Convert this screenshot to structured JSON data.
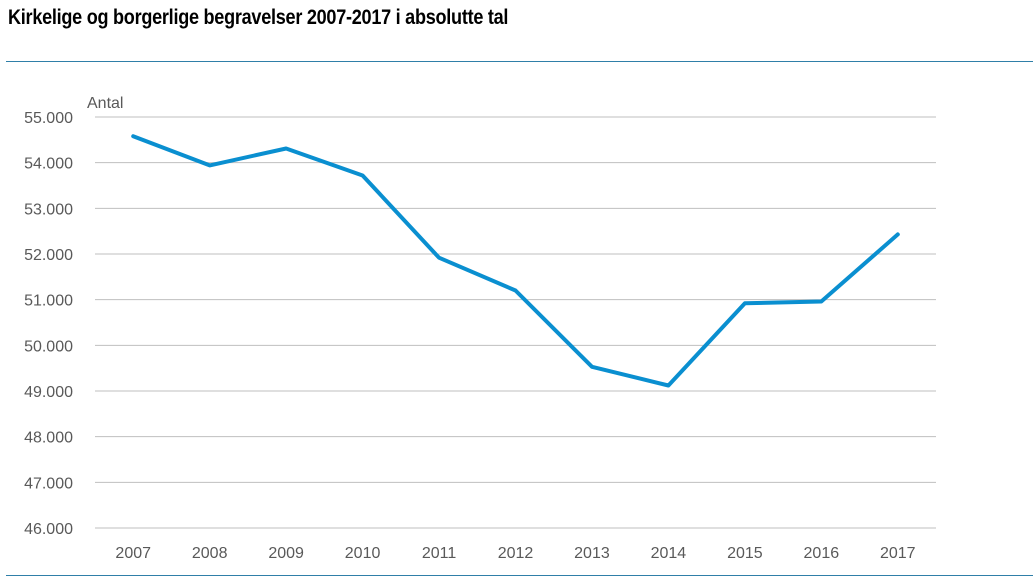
{
  "title": "Kirkelige og borgerlige begravelser 2007-2017 i absolutte tal",
  "colors": {
    "line": "#0a8fd0",
    "grid": "#bfbfbf",
    "rule": "#2f7fa8",
    "axis_text": "#595959"
  },
  "chart_data": {
    "type": "line",
    "title": "Kirkelige og borgerlige begravelser 2007-2017 i absolutte tal",
    "ylabel": "Antal",
    "xlabel": "",
    "categories": [
      "2007",
      "2008",
      "2009",
      "2010",
      "2011",
      "2012",
      "2013",
      "2014",
      "2015",
      "2016",
      "2017"
    ],
    "series": [
      {
        "values": [
          54580,
          53940,
          54310,
          53720,
          51920,
          51200,
          49530,
          49120,
          50920,
          50960,
          52430
        ]
      }
    ],
    "ylim": [
      46000,
      55000
    ],
    "yticks": [
      46000,
      47000,
      48000,
      49000,
      50000,
      51000,
      52000,
      53000,
      54000,
      55000
    ],
    "ytick_labels": [
      "46.000",
      "47.000",
      "48.000",
      "49.000",
      "50.000",
      "51.000",
      "52.000",
      "53.000",
      "54.000",
      "55.000"
    ],
    "grid": true,
    "legend": "none"
  }
}
